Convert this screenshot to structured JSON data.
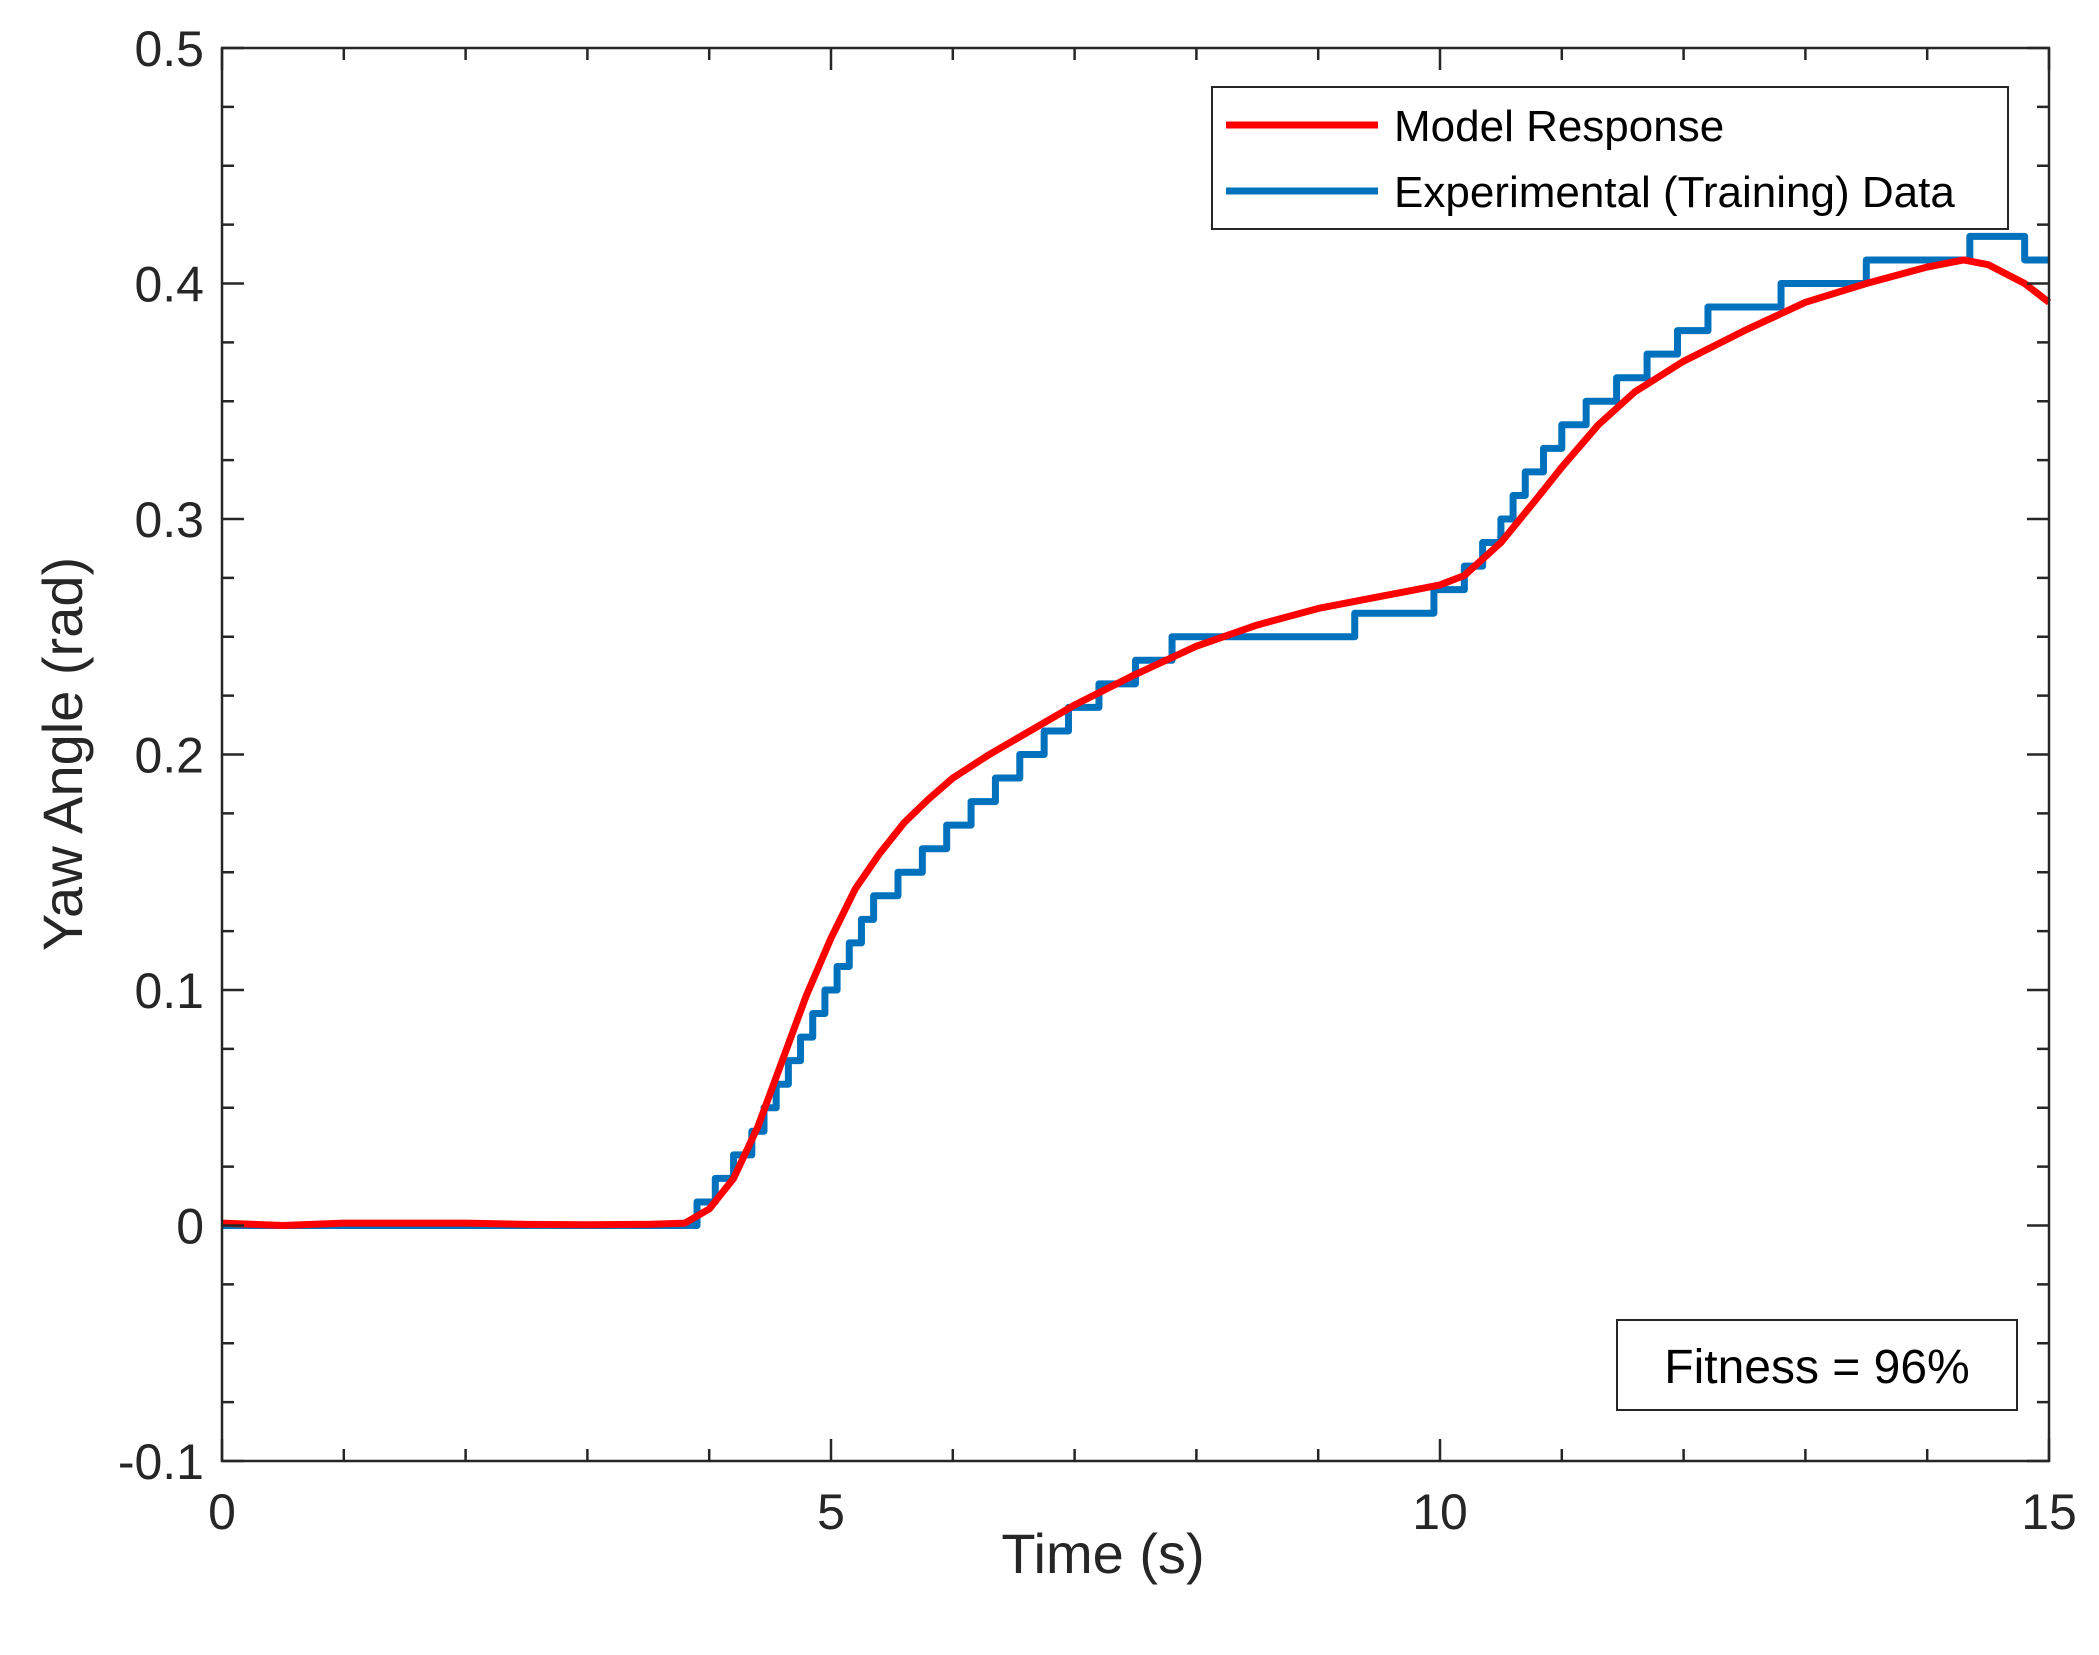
{
  "chart_data": {
    "type": "line",
    "title": "",
    "xlabel": "Time (s)",
    "ylabel": "Yaw Angle (rad)",
    "xlim": [
      0,
      15
    ],
    "ylim": [
      -0.1,
      0.5
    ],
    "x_ticks": [
      0,
      5,
      10,
      15
    ],
    "x_tick_labels": [
      "0",
      "5",
      "10",
      "15"
    ],
    "y_ticks": [
      -0.1,
      0,
      0.1,
      0.2,
      0.3,
      0.4,
      0.5
    ],
    "y_tick_labels": [
      "-0.1",
      "0",
      "0.1",
      "0.2",
      "0.3",
      "0.4",
      "0.5"
    ],
    "grid": false,
    "legend_position": "top-right",
    "series": [
      {
        "name": "Model Response",
        "color": "#ff0000",
        "kind": "line",
        "x": [
          0,
          0.5,
          1,
          1.5,
          2,
          2.5,
          3,
          3.5,
          3.8,
          4.0,
          4.2,
          4.4,
          4.6,
          4.8,
          5.0,
          5.2,
          5.4,
          5.6,
          5.8,
          6.0,
          6.3,
          6.6,
          7.0,
          7.5,
          8.0,
          8.5,
          9.0,
          9.5,
          10.0,
          10.2,
          10.5,
          10.8,
          11.0,
          11.3,
          11.6,
          12.0,
          12.5,
          13.0,
          13.5,
          14.0,
          14.3,
          14.5,
          14.8,
          15.0
        ],
        "y": [
          0.001,
          0.0,
          0.001,
          0.001,
          0.001,
          0.0005,
          0.0003,
          0.0005,
          0.001,
          0.007,
          0.02,
          0.042,
          0.07,
          0.098,
          0.122,
          0.143,
          0.158,
          0.171,
          0.181,
          0.19,
          0.2,
          0.209,
          0.221,
          0.234,
          0.246,
          0.255,
          0.262,
          0.267,
          0.272,
          0.276,
          0.29,
          0.309,
          0.322,
          0.34,
          0.354,
          0.367,
          0.38,
          0.392,
          0.4,
          0.407,
          0.41,
          0.408,
          0.4,
          0.392
        ]
      },
      {
        "name": "Experimental (Training) Data",
        "color": "#0072bd",
        "kind": "step",
        "x": [
          0,
          3.9,
          4.05,
          4.2,
          4.35,
          4.45,
          4.55,
          4.65,
          4.75,
          4.85,
          4.95,
          5.05,
          5.15,
          5.25,
          5.35,
          5.55,
          5.75,
          5.95,
          6.15,
          6.35,
          6.55,
          6.75,
          6.95,
          7.2,
          7.5,
          7.8,
          9.3,
          9.95,
          10.2,
          10.35,
          10.5,
          10.6,
          10.7,
          10.85,
          11.0,
          11.2,
          11.45,
          11.7,
          11.95,
          12.2,
          12.5,
          12.8,
          13.2,
          13.5,
          13.9,
          14.35,
          14.8,
          15.0
        ],
        "y": [
          0.0,
          0.01,
          0.02,
          0.03,
          0.04,
          0.05,
          0.06,
          0.07,
          0.08,
          0.09,
          0.1,
          0.11,
          0.12,
          0.13,
          0.14,
          0.15,
          0.16,
          0.17,
          0.18,
          0.19,
          0.2,
          0.21,
          0.22,
          0.23,
          0.24,
          0.25,
          0.26,
          0.27,
          0.28,
          0.29,
          0.3,
          0.31,
          0.32,
          0.33,
          0.34,
          0.35,
          0.36,
          0.37,
          0.38,
          0.39,
          0.39,
          0.4,
          0.4,
          0.41,
          0.41,
          0.42,
          0.41,
          0.41
        ]
      }
    ],
    "annotation": "Fitness = 96%"
  }
}
